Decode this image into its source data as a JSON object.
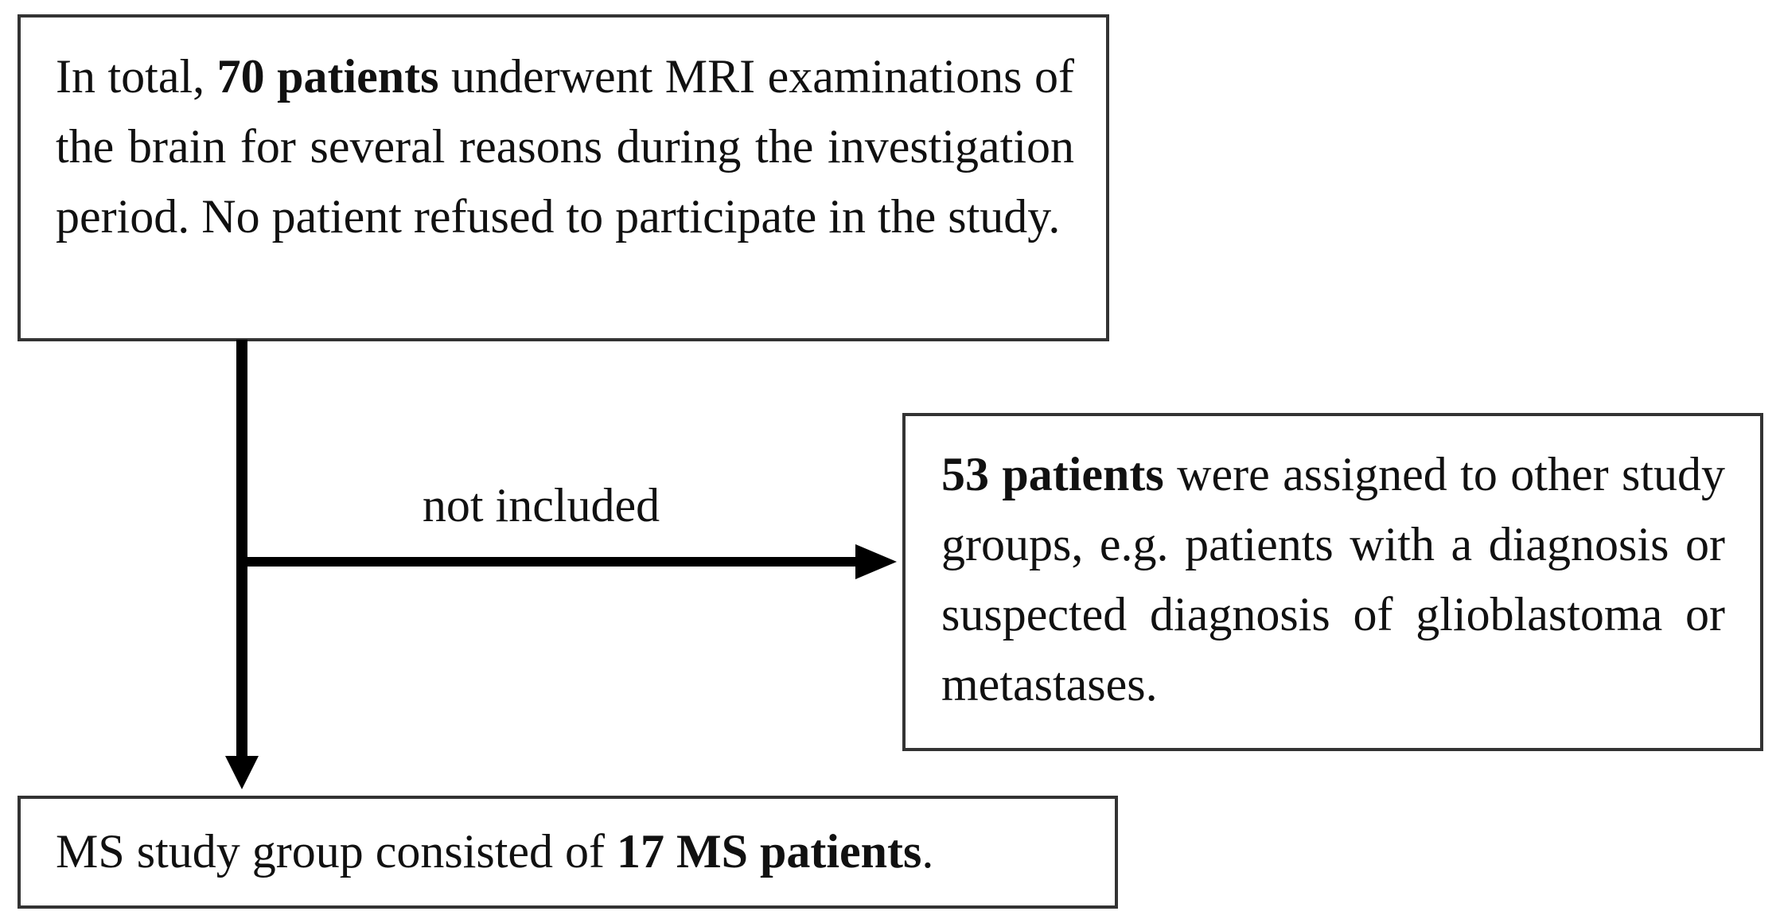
{
  "nodes": [
    {
      "before": "In total, ",
      "bold": "70 patients",
      "after": " underwent MRI examinations of the brain for several reasons during the investigation period. No patient refused to participate in the study."
    },
    {
      "bold": "53 patients",
      "after": " were assigned to other study groups, e.g. patients with a diagnosis or suspected diagnosis of glioblastoma or metastases."
    },
    {
      "before": "MS study group consisted of ",
      "bold": "17 MS patients",
      "after": "."
    }
  ],
  "edges": [
    {
      "label": "not included"
    }
  ]
}
